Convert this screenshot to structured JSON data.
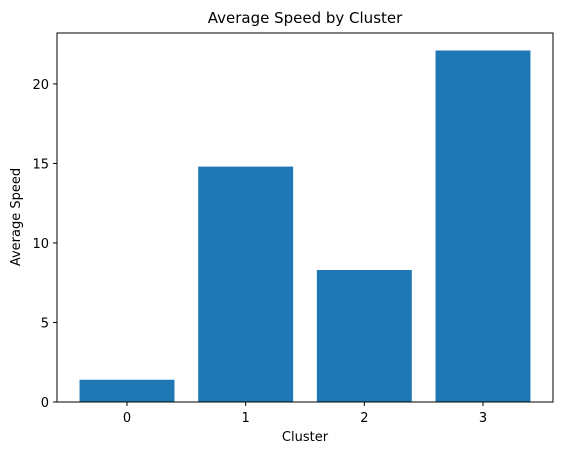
{
  "chart_data": {
    "type": "bar",
    "title": "Average Speed by Cluster",
    "xlabel": "Cluster",
    "ylabel": "Average Speed",
    "categories": [
      "0",
      "1",
      "2",
      "3"
    ],
    "values": [
      1.4,
      14.8,
      8.3,
      22.1
    ],
    "ylim": [
      0,
      23.2
    ],
    "yticks": [
      0,
      5,
      10,
      15,
      20
    ],
    "bar_color": "#1f77b4",
    "grid": false,
    "legend": "none"
  }
}
